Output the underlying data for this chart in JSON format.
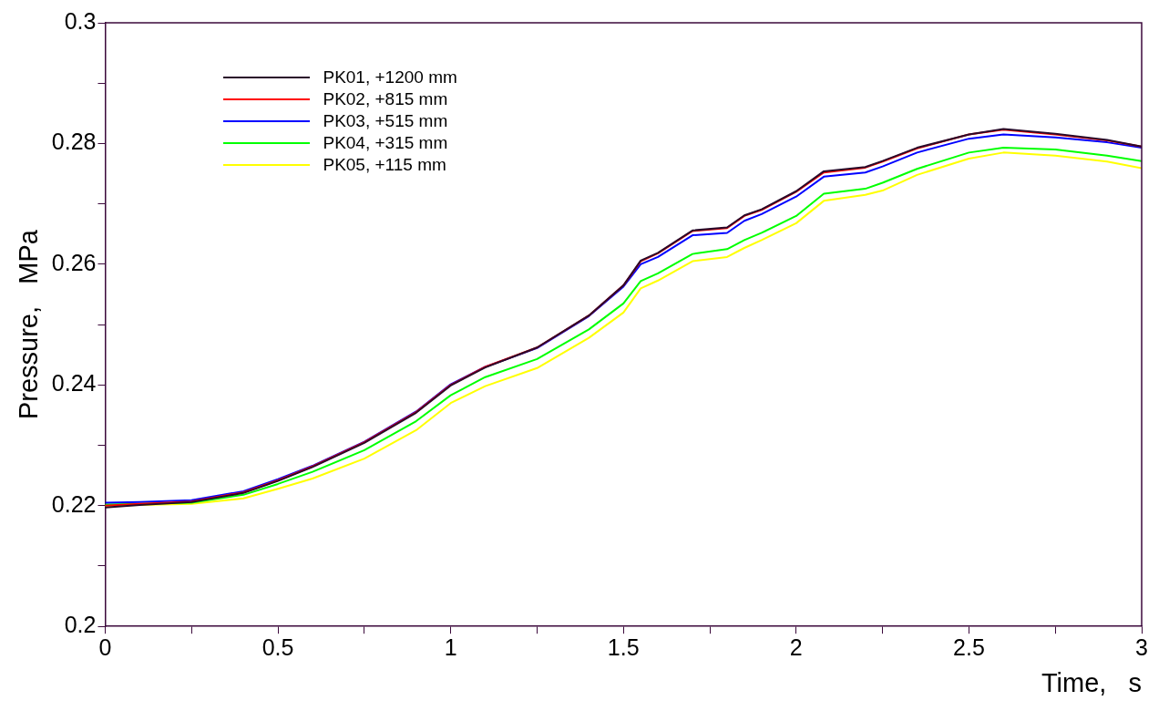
{
  "chart_data": {
    "type": "line",
    "xlabel": "Time,   s",
    "ylabel": "Pressure,   MPa",
    "legend": "top left",
    "xlim": [
      0,
      3
    ],
    "ylim": [
      0.2,
      0.3
    ],
    "xticks": [
      0,
      {
        "value": 0.25,
        "label": null
      },
      0.5,
      {
        "value": 0.75,
        "label": null
      },
      1,
      {
        "value": 1.25,
        "label": null
      },
      1.5,
      {
        "value": 1.75,
        "label": null
      },
      2,
      {
        "value": 2.25,
        "label": null
      },
      2.5,
      {
        "value": 2.75,
        "label": null
      },
      3
    ],
    "yticks": [
      0.2,
      {
        "value": 0.21,
        "label": null
      },
      0.22,
      {
        "value": 0.23,
        "label": null
      },
      0.24,
      {
        "value": 0.25,
        "label": null
      },
      0.26,
      {
        "value": 0.27,
        "label": null
      },
      0.28,
      {
        "value": 0.29,
        "label": null
      },
      0.3
    ],
    "x": [
      0,
      0.1,
      0.25,
      0.4,
      0.5,
      0.6,
      0.75,
      0.9,
      1.0,
      1.1,
      1.25,
      1.4,
      1.5,
      1.55,
      1.6,
      1.7,
      1.8,
      1.85,
      1.9,
      2.0,
      2.08,
      2.2,
      2.25,
      2.35,
      2.5,
      2.6,
      2.75,
      2.9,
      3.0
    ],
    "series": [
      {
        "name": "PK01, +1200 mm",
        "color": "#2a0a2a",
        "values": [
          0.2197,
          0.2201,
          0.2206,
          0.2221,
          0.2241,
          0.2264,
          0.2304,
          0.2354,
          0.2399,
          0.2429,
          0.2462,
          0.2515,
          0.2565,
          0.2606,
          0.2619,
          0.2656,
          0.2661,
          0.2681,
          0.2691,
          0.2721,
          0.2754,
          0.2761,
          0.2771,
          0.2793,
          0.2815,
          0.2824,
          0.2816,
          0.2806,
          0.2795
        ]
      },
      {
        "name": "PK02, +815 mm",
        "color": "#ff0000",
        "values": [
          0.22,
          0.2203,
          0.2207,
          0.2222,
          0.2242,
          0.2265,
          0.2305,
          0.2355,
          0.24,
          0.243,
          0.2462,
          0.2515,
          0.2565,
          0.2605,
          0.2618,
          0.2655,
          0.266,
          0.268,
          0.269,
          0.272,
          0.2752,
          0.276,
          0.277,
          0.2792,
          0.2815,
          0.2823,
          0.2815,
          0.2805,
          0.2795
        ]
      },
      {
        "name": "PK03, +515 mm",
        "color": "#0000ff",
        "values": [
          0.2205,
          0.2206,
          0.2209,
          0.2224,
          0.2244,
          0.2266,
          0.2306,
          0.2356,
          0.2401,
          0.243,
          0.2461,
          0.2514,
          0.2563,
          0.26,
          0.2612,
          0.2648,
          0.2652,
          0.2672,
          0.2683,
          0.2712,
          0.2745,
          0.2752,
          0.2762,
          0.2785,
          0.2808,
          0.2815,
          0.281,
          0.2802,
          0.2793
        ]
      },
      {
        "name": "PK04, +315 mm",
        "color": "#00ff00",
        "values": [
          0.2202,
          0.2203,
          0.2205,
          0.2218,
          0.2236,
          0.2256,
          0.2292,
          0.234,
          0.2383,
          0.2413,
          0.2443,
          0.2492,
          0.2535,
          0.2572,
          0.2585,
          0.2617,
          0.2625,
          0.264,
          0.2652,
          0.268,
          0.2717,
          0.2725,
          0.2735,
          0.2758,
          0.2785,
          0.2793,
          0.279,
          0.278,
          0.2771
        ]
      },
      {
        "name": "PK05, +115 mm",
        "color": "#ffff00",
        "values": [
          0.22,
          0.2201,
          0.2203,
          0.2212,
          0.2228,
          0.2245,
          0.2278,
          0.2325,
          0.237,
          0.2398,
          0.2428,
          0.2478,
          0.252,
          0.256,
          0.2573,
          0.2605,
          0.2612,
          0.2627,
          0.264,
          0.2668,
          0.2705,
          0.2715,
          0.2722,
          0.2748,
          0.2775,
          0.2785,
          0.278,
          0.277,
          0.2759
        ]
      }
    ]
  }
}
